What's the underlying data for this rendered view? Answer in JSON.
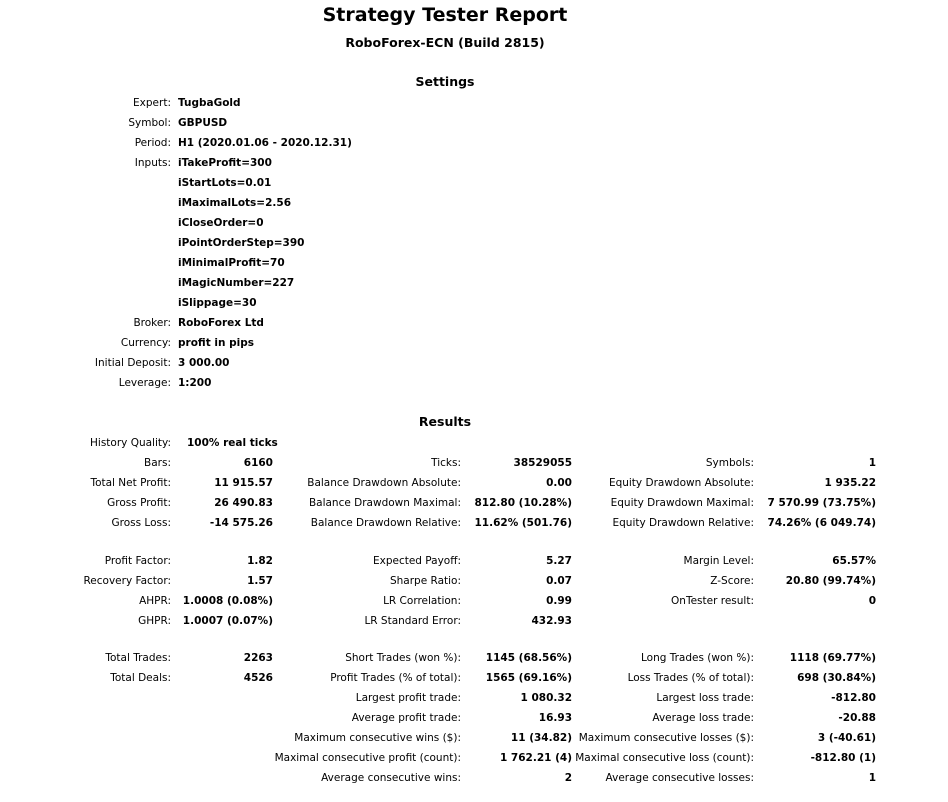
{
  "header": {
    "title": "Strategy Tester Report",
    "subtitle": "RoboForex-ECN (Build 2815)"
  },
  "settings": {
    "heading": "Settings",
    "rows": [
      {
        "label": "Expert:",
        "value": "TugbaGold"
      },
      {
        "label": "Symbol:",
        "value": "GBPUSD"
      },
      {
        "label": "Period:",
        "value": "H1 (2020.01.06 - 2020.12.31)"
      },
      {
        "label": "Inputs:",
        "value": "iTakeProfit=300"
      },
      {
        "label": "",
        "value": "iStartLots=0.01"
      },
      {
        "label": "",
        "value": "iMaximalLots=2.56"
      },
      {
        "label": "",
        "value": "iCloseOrder=0"
      },
      {
        "label": "",
        "value": "iPointOrderStep=390"
      },
      {
        "label": "",
        "value": "iMinimalProfit=70"
      },
      {
        "label": "",
        "value": "iMagicNumber=227"
      },
      {
        "label": "",
        "value": "iSlippage=30"
      },
      {
        "label": "Broker:",
        "value": "RoboForex Ltd"
      },
      {
        "label": "Currency:",
        "value": "profit in pips"
      },
      {
        "label": "Initial Deposit:",
        "value": "3 000.00"
      },
      {
        "label": "Leverage:",
        "value": "1:200"
      }
    ]
  },
  "results": {
    "heading": "Results",
    "history_quality": {
      "label": "History Quality:",
      "value": "100% real ticks"
    },
    "groups": [
      [
        [
          [
            "Bars:",
            "6160"
          ],
          [
            "Ticks:",
            "38529055"
          ],
          [
            "Symbols:",
            "1"
          ]
        ],
        [
          [
            "Total Net Profit:",
            "11 915.57"
          ],
          [
            "Balance Drawdown Absolute:",
            "0.00"
          ],
          [
            "Equity Drawdown Absolute:",
            "1 935.22"
          ]
        ],
        [
          [
            "Gross Profit:",
            "26 490.83"
          ],
          [
            "Balance Drawdown Maximal:",
            "812.80 (10.28%)"
          ],
          [
            "Equity Drawdown Maximal:",
            "7 570.99 (73.75%)"
          ]
        ],
        [
          [
            "Gross Loss:",
            "-14 575.26"
          ],
          [
            "Balance Drawdown Relative:",
            "11.62% (501.76)"
          ],
          [
            "Equity Drawdown Relative:",
            "74.26% (6 049.74)"
          ]
        ]
      ],
      [
        [
          [
            "Profit Factor:",
            "1.82"
          ],
          [
            "Expected Payoff:",
            "5.27"
          ],
          [
            "Margin Level:",
            "65.57%"
          ]
        ],
        [
          [
            "Recovery Factor:",
            "1.57"
          ],
          [
            "Sharpe Ratio:",
            "0.07"
          ],
          [
            "Z-Score:",
            "20.80 (99.74%)"
          ]
        ],
        [
          [
            "AHPR:",
            "1.0008 (0.08%)"
          ],
          [
            "LR Correlation:",
            "0.99"
          ],
          [
            "OnTester result:",
            "0"
          ]
        ],
        [
          [
            "GHPR:",
            "1.0007 (0.07%)"
          ],
          [
            "LR Standard Error:",
            "432.93"
          ],
          null
        ]
      ],
      [
        [
          [
            "Total Trades:",
            "2263"
          ],
          [
            "Short Trades (won %):",
            "1145 (68.56%)"
          ],
          [
            "Long Trades (won %):",
            "1118 (69.77%)"
          ]
        ],
        [
          [
            "Total Deals:",
            "4526"
          ],
          [
            "Profit Trades (% of total):",
            "1565 (69.16%)"
          ],
          [
            "Loss Trades (% of total):",
            "698 (30.84%)"
          ]
        ],
        [
          null,
          [
            "Largest profit trade:",
            "1 080.32"
          ],
          [
            "Largest loss trade:",
            "-812.80"
          ]
        ],
        [
          null,
          [
            "Average profit trade:",
            "16.93"
          ],
          [
            "Average loss trade:",
            "-20.88"
          ]
        ],
        [
          null,
          [
            "Maximum consecutive wins ($):",
            "11 (34.82)"
          ],
          [
            "Maximum consecutive losses ($):",
            "3 (-40.61)"
          ]
        ],
        [
          null,
          [
            "Maximal consecutive profit (count):",
            "1 762.21 (4)"
          ],
          [
            "Maximal consecutive loss (count):",
            "-812.80 (1)"
          ]
        ],
        [
          null,
          [
            "Average consecutive wins:",
            "2"
          ],
          [
            "Average consecutive losses:",
            "1"
          ]
        ]
      ]
    ]
  }
}
